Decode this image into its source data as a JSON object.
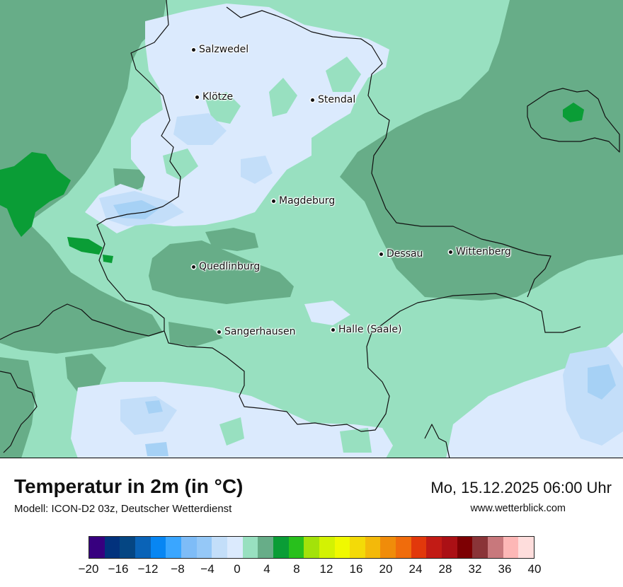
{
  "map": {
    "cities": [
      {
        "id": "salzwedel",
        "name": "Salzwedel"
      },
      {
        "id": "kloetze",
        "name": "Klötze"
      },
      {
        "id": "stendal",
        "name": "Stendal"
      },
      {
        "id": "magdeburg",
        "name": "Magdeburg"
      },
      {
        "id": "dessau",
        "name": "Dessau"
      },
      {
        "id": "wittenberg",
        "name": "Wittenberg"
      },
      {
        "id": "quedlinburg",
        "name": "Quedlinburg"
      },
      {
        "id": "sangerhausen",
        "name": "Sangerhausen"
      },
      {
        "id": "halle",
        "name": "Halle (Saale)"
      }
    ],
    "fill_colors": {
      "very_cold": "#dbeafd",
      "cold": "#c3def9",
      "cool": "#a6d1f5",
      "mild": "#98e0c0",
      "medium": "#67ad88",
      "warm": "#0a9d36"
    }
  },
  "footer": {
    "title": "Temperatur in 2m (in °C)",
    "model": "Modell: ICON-D2 03z, Deutscher Wetterdienst",
    "datetime": "Mo, 15.12.2025 06:00 Uhr",
    "website": "www.wetterblick.com"
  },
  "legend": {
    "colors": [
      "#37007f",
      "#02327d",
      "#054683",
      "#0a63b7",
      "#0786f3",
      "#3aa6ff",
      "#7ebcf7",
      "#95c8f7",
      "#c3def9",
      "#dbeafd",
      "#98e0c0",
      "#67ad88",
      "#0a9d36",
      "#28c01c",
      "#a3e20a",
      "#d3f203",
      "#f0f900",
      "#f3da08",
      "#f3b90a",
      "#f08c0a",
      "#f06c0c",
      "#e2380b",
      "#c21b15",
      "#ab1015",
      "#7d0003",
      "#8a3438",
      "#c8787c",
      "#fdb7b6",
      "#fedddc"
    ],
    "ticks": [
      "−20",
      "−16",
      "−12",
      "−8",
      "−4",
      "0",
      "4",
      "8",
      "12",
      "16",
      "20",
      "24",
      "28",
      "32",
      "36",
      "40"
    ]
  }
}
